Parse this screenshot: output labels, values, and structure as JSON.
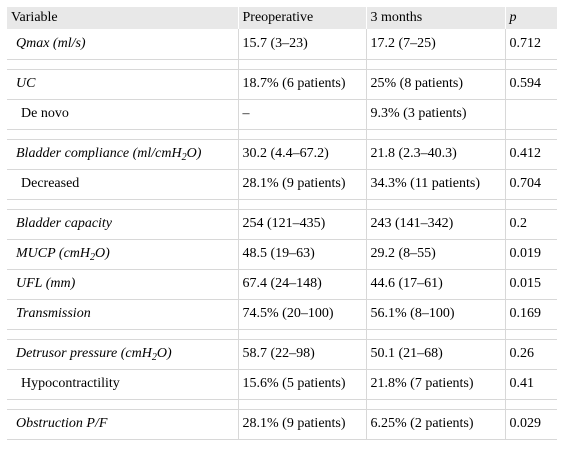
{
  "table": {
    "headers": {
      "variable": "Variable",
      "pre": "Preoperative",
      "post": "3 months",
      "p": "p"
    },
    "rows": [
      {
        "label": "Qmax (ml/s)",
        "pre": "15.7 (3–23)",
        "post": "17.2 (7–25)",
        "p": "0.712"
      },
      {
        "label": "UC",
        "pre": "18.7% (6 patients)",
        "post": "25% (8 patients)",
        "p": "0.594"
      },
      {
        "label": "De novo",
        "pre": "–",
        "post": "9.3% (3 patients)",
        "p": ""
      },
      {
        "label_pre": "Bladder compliance (ml/cmH",
        "label_sub": "2",
        "label_post": "O)",
        "pre": "30.2 (4.4–67.2)",
        "post": "21.8 (2.3–40.3)",
        "p": "0.412"
      },
      {
        "label": "Decreased",
        "pre": "28.1% (9 patients)",
        "post": "34.3% (11 patients)",
        "p": "0.704"
      },
      {
        "label": "Bladder capacity",
        "pre": "254 (121–435)",
        "post": "243 (141–342)",
        "p": "0.2"
      },
      {
        "label_pre": "MUCP (cmH",
        "label_sub": "2",
        "label_post": "O)",
        "pre": "48.5 (19–63)",
        "post": "29.2 (8–55)",
        "p": "0.019"
      },
      {
        "label": "UFL (mm)",
        "pre": "67.4 (24–148)",
        "post": "44.6 (17–61)",
        "p": "0.015"
      },
      {
        "label": "Transmission",
        "pre": "74.5% (20–100)",
        "post": "56.1% (8–100)",
        "p": "0.169"
      },
      {
        "label_pre": "Detrusor pressure (cmH",
        "label_sub": "2",
        "label_post": "O)",
        "pre": "58.7 (22–98)",
        "post": "50.1 (21–68)",
        "p": "0.26"
      },
      {
        "label": "Hypocontractility",
        "pre": "15.6% (5 patients)",
        "post": "21.8% (7 patients)",
        "p": "0.41"
      },
      {
        "label": "Obstruction P/F",
        "pre": "28.1% (9 patients)",
        "post": "6.25% (2 patients)",
        "p": "0.029"
      }
    ]
  }
}
